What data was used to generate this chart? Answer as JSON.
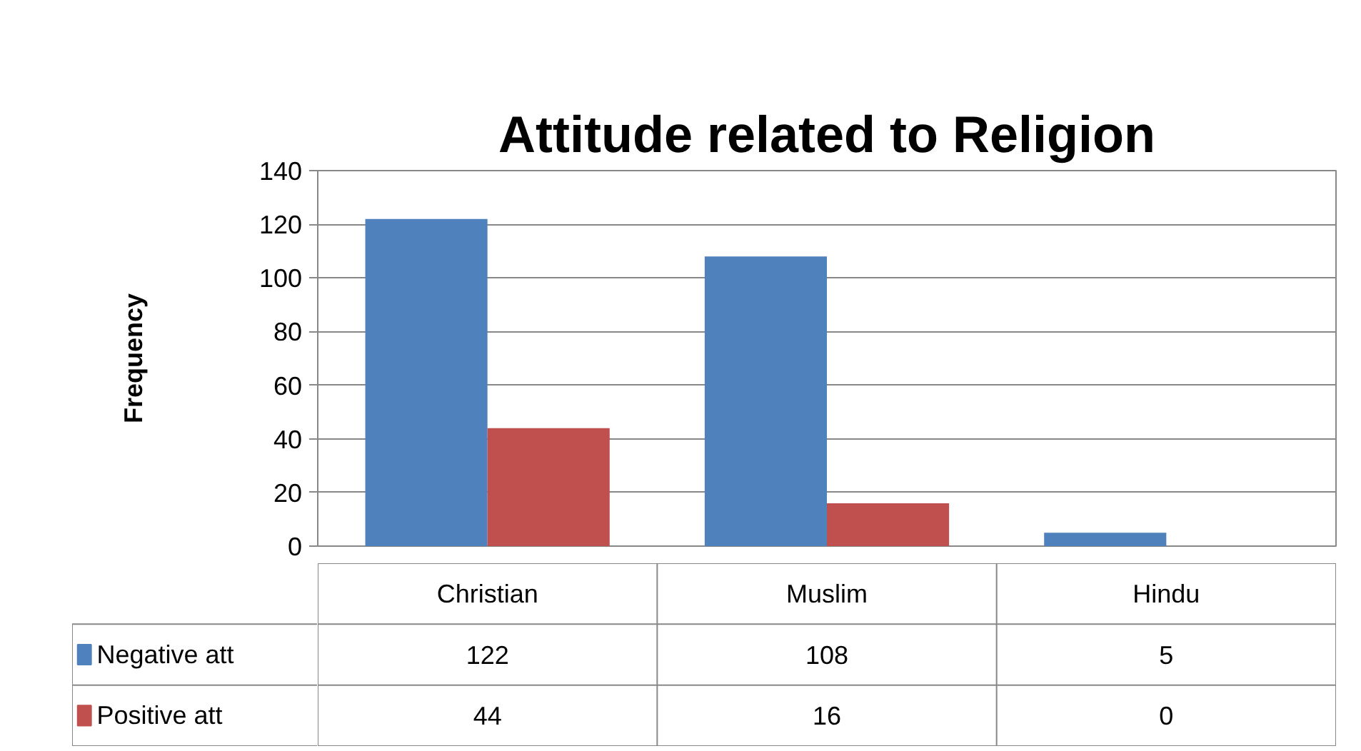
{
  "chart_data": {
    "type": "bar",
    "title": "Attitude related to Religion",
    "ylabel": "Frequency",
    "categories": [
      "Christian",
      "Muslim",
      "Hindu"
    ],
    "series": [
      {
        "name": "Negative att",
        "color": "#4f81bd",
        "values": [
          122,
          108,
          5
        ]
      },
      {
        "name": "Positive att",
        "color": "#c0504d",
        "values": [
          44,
          16,
          0
        ]
      }
    ],
    "ylim": [
      0,
      140
    ],
    "yticks": [
      0,
      20,
      40,
      60,
      80,
      100,
      120,
      140
    ],
    "grid": "y",
    "legend": "bottom",
    "data_labels": true
  }
}
